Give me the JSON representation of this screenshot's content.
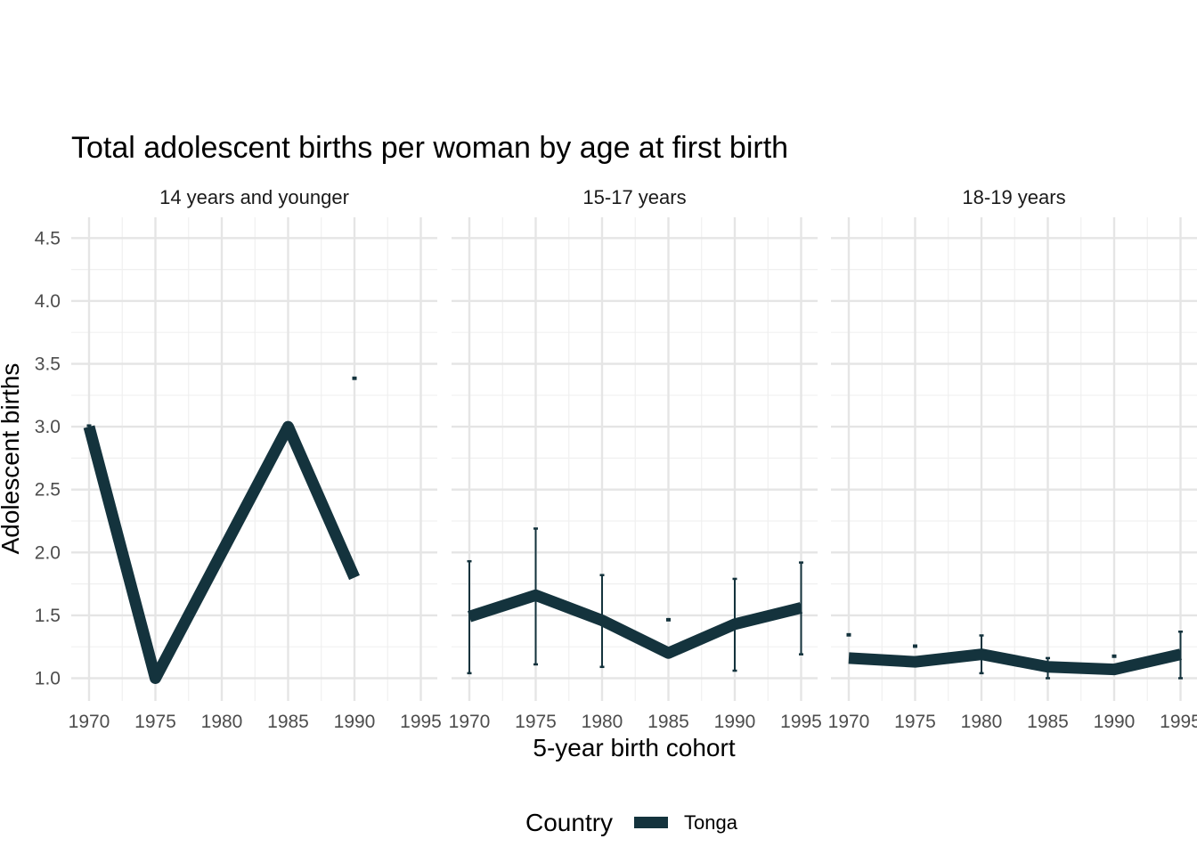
{
  "chart_data": {
    "type": "line",
    "title": "Total adolescent births per woman by age at first birth",
    "xlabel": "5-year birth cohort",
    "ylabel": "Adolescent births",
    "x_ticks": [
      "1970",
      "1975",
      "1980",
      "1985",
      "1990",
      "1995"
    ],
    "y_ticks": [
      "1.0",
      "1.5",
      "2.0",
      "2.5",
      "3.0",
      "3.5",
      "4.0",
      "4.5"
    ],
    "xlim": [
      1970,
      1995
    ],
    "ylim": [
      1.0,
      4.5
    ],
    "grid": true,
    "legend": {
      "title": "Country",
      "position": "bottom",
      "entries": [
        "Tonga"
      ]
    },
    "colors": {
      "series": "#14333d",
      "grid_major": "#e5e5e5",
      "grid_minor": "#f0f0f0"
    },
    "panels": [
      {
        "label": "14 years and younger",
        "series": [
          {
            "name": "Tonga",
            "points": [
              {
                "x": 1970,
                "y": 3.0,
                "lo": 2.99,
                "hi": 3.01
              },
              {
                "x": 1975,
                "y": 1.0
              },
              {
                "x": 1980,
                "y": 2.0
              },
              {
                "x": 1985,
                "y": 3.0
              },
              {
                "x": 1990,
                "y": 1.8
              }
            ],
            "errorbars_only": [
              {
                "x": 1990,
                "lo": 3.38,
                "hi": 3.39
              }
            ]
          }
        ]
      },
      {
        "label": "15-17 years",
        "series": [
          {
            "name": "Tonga",
            "points": [
              {
                "x": 1970,
                "y": 1.49,
                "lo": 1.04,
                "hi": 1.93
              },
              {
                "x": 1975,
                "y": 1.66,
                "lo": 1.11,
                "hi": 2.19
              },
              {
                "x": 1980,
                "y": 1.46,
                "lo": 1.09,
                "hi": 1.82
              },
              {
                "x": 1985,
                "y": 1.2
              },
              {
                "x": 1990,
                "y": 1.43,
                "lo": 1.06,
                "hi": 1.79
              },
              {
                "x": 1995,
                "y": 1.56,
                "lo": 1.19,
                "hi": 1.92
              }
            ],
            "errorbars_only": [
              {
                "x": 1985,
                "lo": 1.46,
                "hi": 1.47
              }
            ]
          }
        ]
      },
      {
        "label": "18-19 years",
        "series": [
          {
            "name": "Tonga",
            "points": [
              {
                "x": 1970,
                "y": 1.16
              },
              {
                "x": 1975,
                "y": 1.13
              },
              {
                "x": 1980,
                "y": 1.19,
                "lo": 1.04,
                "hi": 1.34
              },
              {
                "x": 1985,
                "y": 1.09,
                "lo": 1.0,
                "hi": 1.16
              },
              {
                "x": 1990,
                "y": 1.07
              },
              {
                "x": 1995,
                "y": 1.19,
                "lo": 1.0,
                "hi": 1.37
              }
            ],
            "errorbars_only": [
              {
                "x": 1970,
                "lo": 1.34,
                "hi": 1.35
              },
              {
                "x": 1975,
                "lo": 1.25,
                "hi": 1.26
              },
              {
                "x": 1990,
                "lo": 1.17,
                "hi": 1.18
              }
            ]
          }
        ]
      }
    ]
  }
}
